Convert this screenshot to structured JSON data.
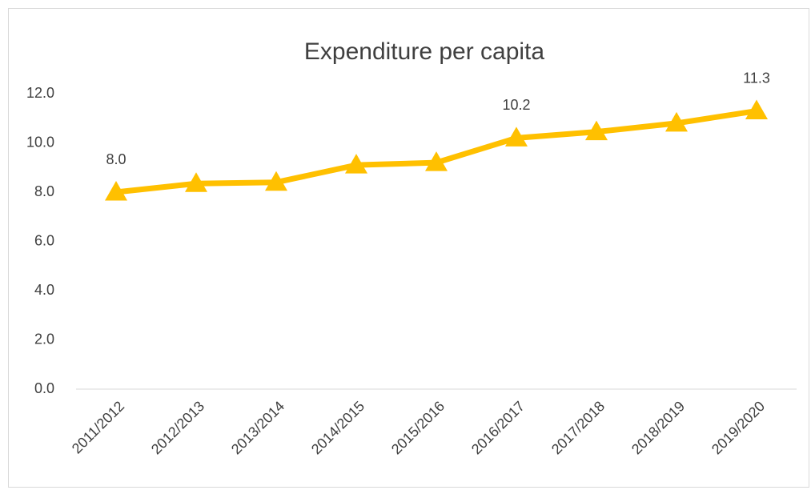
{
  "chart_data": {
    "type": "line",
    "title": "Expenditure per capita",
    "categories": [
      "2011/2012",
      "2012/2013",
      "2013/2014",
      "2014/2015",
      "2015/2016",
      "2016/2017",
      "2017/2018",
      "2018/2019",
      "2019/2020"
    ],
    "series": [
      {
        "name": "Expenditure per capita",
        "color": "#ffc000",
        "values": [
          8.0,
          8.35,
          8.4,
          9.1,
          9.2,
          10.2,
          10.45,
          10.8,
          11.3
        ],
        "value_labels": [
          "8.0",
          null,
          null,
          null,
          null,
          "10.2",
          null,
          null,
          "11.3"
        ]
      }
    ],
    "ylim": [
      0,
      12
    ],
    "yticks": [
      {
        "value": 0,
        "label": "0.0"
      },
      {
        "value": 2,
        "label": "2.0"
      },
      {
        "value": 4,
        "label": "4.0"
      },
      {
        "value": 6,
        "label": "6.0"
      },
      {
        "value": 8,
        "label": "8.0"
      },
      {
        "value": 10,
        "label": "10.0"
      },
      {
        "value": 12,
        "label": "12.0"
      }
    ],
    "grid": false,
    "marker": "triangle"
  }
}
